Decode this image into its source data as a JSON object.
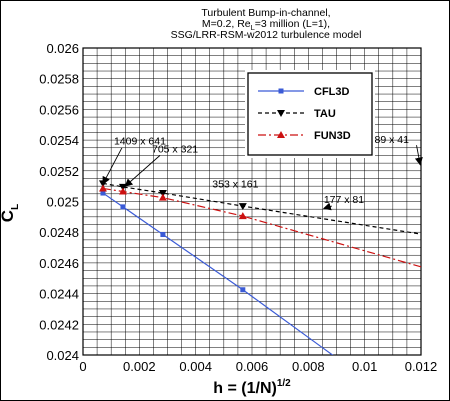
{
  "chart_data": {
    "type": "line",
    "title_lines": [
      {
        "text": "Turbulent Bump-in-channel,"
      },
      {
        "pre": "M=0.2, Re",
        "sub": "L",
        "post": "=3 million (L=1),"
      },
      {
        "text": "SSG/LRR-RSM-w2012 turbulence model"
      }
    ],
    "xlabel": {
      "base": "h = (1/N)",
      "sup": "1/2"
    },
    "ylabel": {
      "base": "C",
      "sub": "L"
    },
    "xlim": [
      0,
      0.012
    ],
    "ylim": [
      0.024,
      0.026
    ],
    "x_ticks": [
      0,
      0.002,
      0.004,
      0.006,
      0.008,
      0.01,
      0.012
    ],
    "x_tick_labels": [
      "0",
      "0.002",
      "0.004",
      "0.006",
      "0.008",
      "0.01",
      "0.012"
    ],
    "y_ticks": [
      0.024,
      0.0242,
      0.0244,
      0.0246,
      0.0248,
      0.025,
      0.0252,
      0.0254,
      0.0256,
      0.0258,
      0.026
    ],
    "y_tick_labels": [
      "0.024",
      "0.0242",
      "0.0244",
      "0.0246",
      "0.0248",
      "0.025",
      "0.0252",
      "0.0254",
      "0.0256",
      "0.0258",
      "0.026"
    ],
    "grid": true,
    "legend_position": "top-right",
    "series": [
      {
        "name": "CFL3D",
        "color": "#3b5bd6",
        "dash": "solid",
        "marker": "square",
        "x": [
          0.000709,
          0.001419,
          0.002837,
          0.005674,
          0.008447
        ],
        "y": [
          0.025055,
          0.024965,
          0.024785,
          0.024425,
          0.024055
        ],
        "marker_indices": [
          0,
          1,
          2,
          3
        ],
        "line_extends_to_x": 0.012
      },
      {
        "name": "TAU",
        "color": "#000000",
        "dash": "4,3",
        "marker": "triangle-down",
        "x": [
          0.000709,
          0.001419,
          0.002837,
          0.005674,
          0.008447
        ],
        "y": [
          0.025118,
          0.025095,
          0.025055,
          0.02497,
          0.02489
        ],
        "marker_indices": [
          0,
          1,
          2,
          3
        ],
        "line_extends_to_x": 0.012
      },
      {
        "name": "FUN3D",
        "color": "#cc1111",
        "dash": "8,3,2,3",
        "marker": "triangle-up",
        "x": [
          0.000709,
          0.001419,
          0.002837,
          0.005674,
          0.008447
        ],
        "y": [
          0.025085,
          0.025065,
          0.025025,
          0.024905,
          0.02476
        ],
        "marker_indices": [
          0,
          1,
          2,
          3
        ],
        "line_extends_to_x": 0.012
      }
    ],
    "annotations": [
      {
        "text": "1409 x 641",
        "x": 0.0011,
        "y": 0.02537,
        "arrow_to": [
          0.000709,
          0.025115
        ]
      },
      {
        "text": "705 x 321",
        "x": 0.00245,
        "y": 0.02532,
        "arrow_to": [
          0.0015,
          0.0251
        ]
      },
      {
        "text": "353 x 161",
        "x": 0.00459,
        "y": 0.02509
      },
      {
        "text": "177 x 81",
        "x": 0.00855,
        "y": 0.02499,
        "arrow_to": [
          0.00855,
          0.024955
        ]
      },
      {
        "text": "89 x 41",
        "x": 0.01035,
        "y": 0.02538,
        "arrow_to": [
          0.01197,
          0.02524
        ]
      }
    ]
  }
}
